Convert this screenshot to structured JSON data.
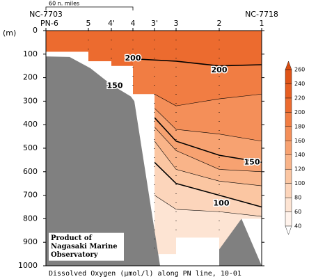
{
  "chart_data": {
    "type": "contour",
    "caption": "Dissolved Oxygen (µmol/l) along PN line, 10-01",
    "ylabel": "(m)",
    "ylim": [
      0,
      1000
    ],
    "yticks": [
      0,
      100,
      200,
      300,
      400,
      500,
      600,
      700,
      800,
      900,
      1000
    ],
    "stations": [
      "PN-6",
      "5",
      "4'",
      "4",
      "3'",
      "3",
      "2",
      "1"
    ],
    "left_end": "NC-7703",
    "right_end": "NC-7718",
    "scale_label": "60 n. miles",
    "credit": [
      "Product of",
      "Nagasaki Marine",
      "Observatory"
    ],
    "base_color": "#ec6b2f",
    "contours": [
      {
        "level": 200,
        "depths": [
          null,
          null,
          null,
          120,
          125,
          130,
          150,
          145
        ]
      },
      {
        "level": 180,
        "depths": [
          null,
          null,
          null,
          null,
          270,
          320,
          290,
          270
        ]
      },
      {
        "level": 160,
        "depths": [
          null,
          null,
          null,
          null,
          330,
          420,
          440,
          470
        ]
      },
      {
        "level": 150,
        "depths": [
          null,
          null,
          null,
          null,
          370,
          470,
          530,
          560
        ]
      },
      {
        "level": 140,
        "depths": [
          null,
          null,
          null,
          null,
          410,
          510,
          590,
          600
        ]
      },
      {
        "level": 120,
        "depths": [
          null,
          null,
          null,
          null,
          470,
          590,
          640,
          660
        ]
      },
      {
        "level": 100,
        "depths": [
          null,
          null,
          null,
          null,
          560,
          650,
          700,
          750
        ]
      },
      {
        "level": 80,
        "depths": [
          null,
          null,
          null,
          null,
          700,
          760,
          770,
          790
        ]
      }
    ],
    "contour_labels": [
      200,
      200,
      150,
      150,
      100
    ],
    "colorbar": {
      "ticks": [
        40,
        60,
        80,
        100,
        120,
        140,
        160,
        180,
        200,
        220,
        240,
        260
      ],
      "colors": [
        "#fff3ec",
        "#fde4d3",
        "#fcd5bb",
        "#fbc6a2",
        "#f9b489",
        "#f7a271",
        "#f48f59",
        "#f17d43",
        "#ec6b2f",
        "#e65e22",
        "#df5418"
      ],
      "under_color": "#ffffff",
      "over_color": "#d84c10"
    }
  }
}
